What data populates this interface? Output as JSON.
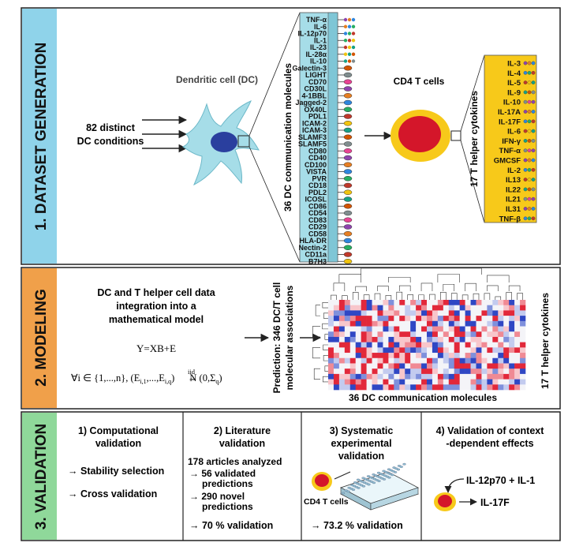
{
  "section1": {
    "label": "1. DATASET GENERATION",
    "dc_cell_label": "Dendritic cell (DC)",
    "conditions_line1": "82 distinct",
    "conditions_line2": "DC conditions",
    "dc_molecules_axis": "36 DC communication molecules",
    "dc_molecules": [
      "TNF-α",
      "IL-6",
      "IL-12p70",
      "IL-1",
      "IL-23",
      "IL-28α",
      "IL-10",
      "Galectin-3",
      "LIGHT",
      "CD70",
      "CD30L",
      "4-1BBL",
      "Jagged-2",
      "OX40L",
      "PDL1",
      "ICAM-2",
      "ICAM-3",
      "SLAMF3",
      "SLAMF5",
      "CD80",
      "CD40",
      "CD100",
      "VISTA",
      "PVR",
      "CD18",
      "PDL2",
      "ICOSL",
      "CD86",
      "CD54",
      "CD83",
      "CD29",
      "CD58",
      "HLA-DR",
      "Nectin-2",
      "CD11a",
      "B7H3"
    ],
    "t_cell_label": "CD4 T cells",
    "cytokines_axis": "17 T helper cytokines",
    "cytokines": [
      "IL-3",
      "IL-4",
      "IL-5",
      "IL-9",
      "IL-10",
      "IL-17A",
      "IL-17F",
      "IL-6",
      "IFN-γ",
      "TNF-α",
      "GMCSF",
      "IL-2",
      "IL13",
      "IL22",
      "IL21",
      "IL31",
      "TNF-β"
    ]
  },
  "section2": {
    "label": "2. MODELING",
    "description_line1": "DC and T helper cell data",
    "description_line2": "integration into a",
    "description_line3": "mathematical model",
    "equation": "Y=XB+E",
    "condition_part1": "∀i ∈ {1,...,n}, (E",
    "condition_sub1": "i,1",
    "condition_part2": ",...,E",
    "condition_sub2": "i,q",
    "condition_part3": ")",
    "iid": "iid",
    "condition_part4": "N (0,Σ",
    "condition_sub3": "q",
    "condition_part5": ")",
    "prediction_line1": "Prediction: 346 DC/T cell",
    "prediction_line2": "molecular associations",
    "heatmap_xlabel": "36 DC communication molecules",
    "heatmap_ylabel": "17 T helper cytokines"
  },
  "section3": {
    "label": "3. VALIDATION",
    "col1_title_line1": "1) Computational",
    "col1_title_line2": "validation",
    "col1_item1": "Stability selection",
    "col1_item2": "Cross validation",
    "col2_title_line1": "2) Literature",
    "col2_title_line2": "validation",
    "col2_articles": "178 articles analyzed",
    "col2_item1_line1": "56 validated",
    "col2_item1_line2": "predictions",
    "col2_item2_line1": "290 novel",
    "col2_item2_line2": "predictions",
    "col2_result": "70 % validation",
    "col3_title_line1": "3) Systematic",
    "col3_title_line2": "experimental",
    "col3_title_line3": "validation",
    "col3_cell_label": "CD4 T cells",
    "col3_result": "73.2 % validation",
    "col4_title_line1": "4) Validation of context",
    "col4_title_line2": "-dependent effects",
    "col4_input": "IL-12p70 + IL-1",
    "col4_output": "IL-17F"
  },
  "colors": {
    "section1_band": "#8fd3ea",
    "section2_band": "#f0a04a",
    "section3_band": "#8fd89a",
    "dc_cell": "#a6dde8",
    "dc_nucleus": "#2a3f9e",
    "t_cell_outer": "#f7c91a",
    "t_cell_inner": "#d4162a",
    "cytokine_panel": "#f7c91a",
    "heat_red": "#e2283a",
    "heat_blue": "#2f47c4"
  }
}
